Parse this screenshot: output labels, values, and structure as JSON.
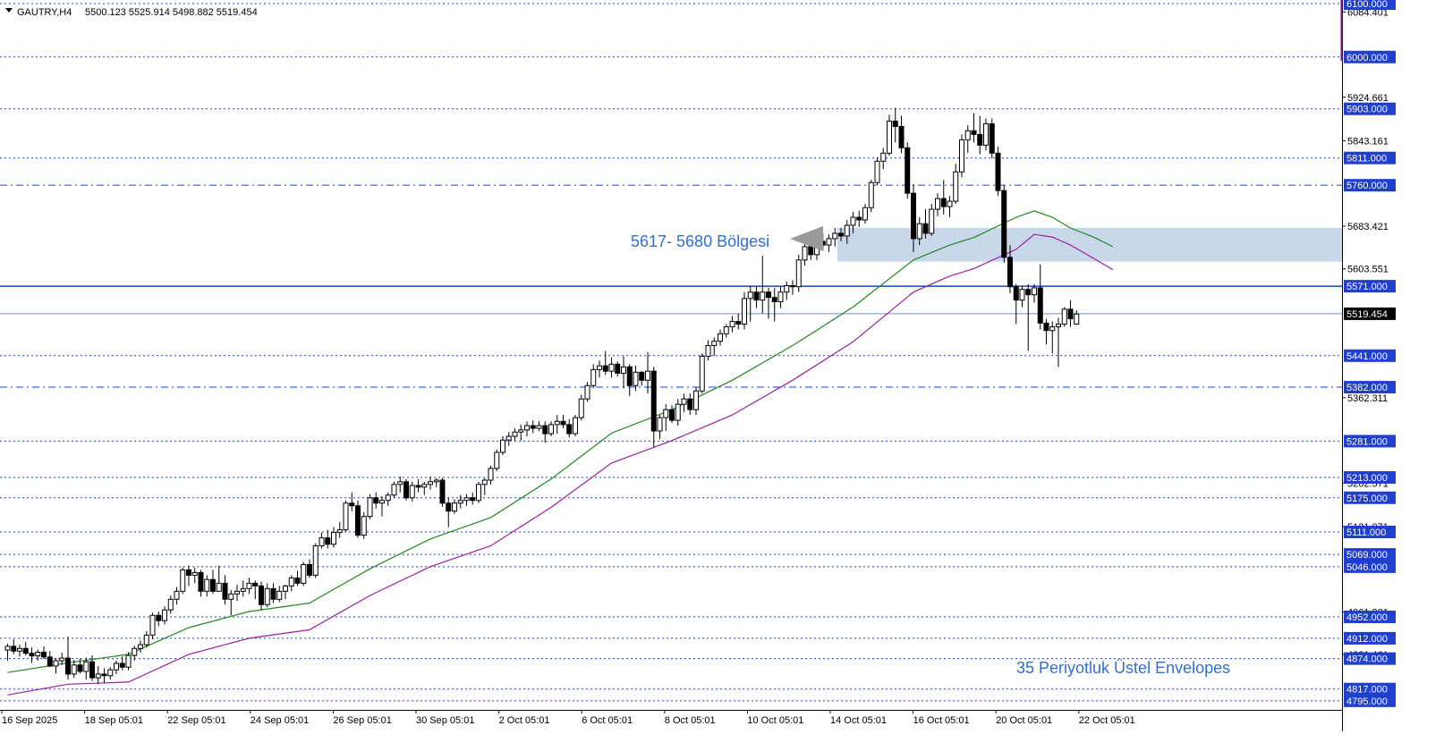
{
  "header": {
    "symbol_tf": "GAUTRY,H4",
    "ohlc": "5500.123 5525.914 5498.882 5519.454"
  },
  "colors": {
    "bull_body": "#ffffff",
    "bear_body": "#000000",
    "candle_line": "#000000",
    "grid_dotted": "#1f3fcc",
    "level_dash_dot": "#1f3fcc",
    "support_solid": "#1a46c8",
    "price_line": "#6f8fc4",
    "zone_fill": "#c9d7ea",
    "ema_upper": "#1f8a1f",
    "ema_lower": "#9b1fa0",
    "tag_bg": "#1f3fcc",
    "annotation_text": "#2f6fd6",
    "axis_accent": "#7a1a8a"
  },
  "chart_data": {
    "type": "candlestick",
    "timeframe": "H4",
    "y_axis_range": [
      4778,
      6100
    ],
    "y_axis_side": "right",
    "x_labels": [
      "16 Sep 2025",
      "18 Sep 05:01",
      "22 Sep 05:01",
      "24 Sep 05:01",
      "26 Sep 05:01",
      "30 Sep 05:01",
      "2 Oct 05:01",
      "6 Oct 05:01",
      "8 Oct 05:01",
      "10 Oct 05:01",
      "14 Oct 05:01",
      "16 Oct 05:01",
      "20 Oct 05:01",
      "22 Oct 05:01"
    ],
    "y_ticks": [
      "6084.401",
      "5924.661",
      "5843.161",
      "5683.421",
      "5603.551",
      "5362.311",
      "5202.571",
      "5121.071",
      "4961.331",
      "4881.461"
    ],
    "levels_dotted": [
      {
        "value": 6100,
        "label": "6100.000"
      },
      {
        "value": 6000,
        "label": "6000.000"
      },
      {
        "value": 5903,
        "label": "5903.000"
      },
      {
        "value": 5811,
        "label": "5811.000"
      },
      {
        "value": 5441,
        "label": "5441.000"
      },
      {
        "value": 5281,
        "label": "5281.000"
      },
      {
        "value": 5213,
        "label": "5213.000"
      },
      {
        "value": 5175,
        "label": "5175.000"
      },
      {
        "value": 5111,
        "label": "5111.000"
      },
      {
        "value": 5069,
        "label": "5069.000"
      },
      {
        "value": 5046,
        "label": "5046.000"
      },
      {
        "value": 4952,
        "label": "4952.000"
      },
      {
        "value": 4912,
        "label": "4912.000"
      },
      {
        "value": 4874,
        "label": "4874.000"
      },
      {
        "value": 4817,
        "label": "4817.000"
      },
      {
        "value": 4795,
        "label": "4795.000"
      }
    ],
    "levels_dash_dot": [
      {
        "value": 5760,
        "label": "5760.000"
      },
      {
        "value": 5382,
        "label": "5382.000"
      }
    ],
    "levels_solid": [
      {
        "value": 5571,
        "label": "5571.000"
      }
    ],
    "current_price": {
      "value": 5519.454,
      "label": "5519.454"
    },
    "zone": {
      "low": 5617,
      "high": 5680,
      "label": "5617- 5680 Bölgesi"
    },
    "envelope_label": "35 Periyotluk Üstel Envelopes",
    "candles": [
      [
        4890,
        4902,
        4870,
        4897
      ],
      [
        4897,
        4910,
        4882,
        4888
      ],
      [
        4888,
        4900,
        4878,
        4893
      ],
      [
        4893,
        4905,
        4880,
        4884
      ],
      [
        4884,
        4895,
        4866,
        4879
      ],
      [
        4879,
        4891,
        4870,
        4886
      ],
      [
        4886,
        4897,
        4873,
        4877
      ],
      [
        4877,
        4888,
        4858,
        4860
      ],
      [
        4860,
        4875,
        4846,
        4870
      ],
      [
        4870,
        4885,
        4862,
        4875
      ],
      [
        4875,
        4915,
        4835,
        4845
      ],
      [
        4845,
        4872,
        4838,
        4862
      ],
      [
        4862,
        4874,
        4846,
        4850
      ],
      [
        4850,
        4876,
        4835,
        4868
      ],
      [
        4868,
        4880,
        4832,
        4838
      ],
      [
        4838,
        4860,
        4826,
        4845
      ],
      [
        4845,
        4856,
        4828,
        4842
      ],
      [
        4842,
        4858,
        4835,
        4853
      ],
      [
        4853,
        4870,
        4845,
        4865
      ],
      [
        4865,
        4878,
        4852,
        4858
      ],
      [
        4858,
        4886,
        4852,
        4880
      ],
      [
        4880,
        4898,
        4870,
        4893
      ],
      [
        4893,
        4908,
        4885,
        4900
      ],
      [
        4900,
        4925,
        4895,
        4918
      ],
      [
        4918,
        4960,
        4910,
        4955
      ],
      [
        4955,
        4962,
        4935,
        4945
      ],
      [
        4945,
        4972,
        4938,
        4965
      ],
      [
        4965,
        4992,
        4958,
        4985
      ],
      [
        4985,
        5008,
        4975,
        5000
      ],
      [
        5000,
        5045,
        4995,
        5040
      ],
      [
        5040,
        5048,
        5010,
        5030
      ],
      [
        5030,
        5045,
        5015,
        5035
      ],
      [
        5035,
        5040,
        4990,
        5000
      ],
      [
        5000,
        5030,
        4990,
        5022
      ],
      [
        5022,
        5040,
        4995,
        5000
      ],
      [
        5000,
        5048,
        5010,
        5015
      ],
      [
        5015,
        5030,
        4975,
        4985
      ],
      [
        4985,
        5002,
        4955,
        4995
      ],
      [
        4995,
        5012,
        4982,
        5000
      ],
      [
        5000,
        5020,
        4990,
        5005
      ],
      [
        5005,
        5025,
        4995,
        5015
      ],
      [
        5015,
        5020,
        4985,
        5010
      ],
      [
        5010,
        5018,
        4965,
        4975
      ],
      [
        4975,
        5015,
        4970,
        5005
      ],
      [
        5005,
        5015,
        4978,
        4985
      ],
      [
        4985,
        5010,
        4980,
        5000
      ],
      [
        5000,
        5012,
        4985,
        5010
      ],
      [
        5010,
        5030,
        5000,
        5025
      ],
      [
        5025,
        5038,
        5010,
        5015
      ],
      [
        5015,
        5055,
        5010,
        5050
      ],
      [
        5050,
        5060,
        5025,
        5030
      ],
      [
        5030,
        5090,
        5025,
        5085
      ],
      [
        5085,
        5110,
        5080,
        5100
      ],
      [
        5100,
        5115,
        5080,
        5088
      ],
      [
        5088,
        5120,
        5082,
        5110
      ],
      [
        5110,
        5130,
        5100,
        5115
      ],
      [
        5115,
        5170,
        5112,
        5165
      ],
      [
        5165,
        5185,
        5150,
        5160
      ],
      [
        5160,
        5170,
        5100,
        5105
      ],
      [
        5105,
        5148,
        5098,
        5140
      ],
      [
        5140,
        5182,
        5135,
        5175
      ],
      [
        5175,
        5185,
        5155,
        5165
      ],
      [
        5165,
        5178,
        5140,
        5170
      ],
      [
        5170,
        5185,
        5160,
        5180
      ],
      [
        5180,
        5205,
        5175,
        5200
      ],
      [
        5200,
        5215,
        5185,
        5205
      ],
      [
        5205,
        5210,
        5170,
        5175
      ],
      [
        5175,
        5205,
        5168,
        5198
      ],
      [
        5198,
        5210,
        5185,
        5195
      ],
      [
        5195,
        5205,
        5180,
        5200
      ],
      [
        5200,
        5215,
        5190,
        5205
      ],
      [
        5205,
        5212,
        5195,
        5208
      ],
      [
        5208,
        5212,
        5158,
        5165
      ],
      [
        5165,
        5175,
        5120,
        5150
      ],
      [
        5150,
        5172,
        5145,
        5165
      ],
      [
        5165,
        5180,
        5155,
        5170
      ],
      [
        5170,
        5182,
        5160,
        5175
      ],
      [
        5175,
        5185,
        5162,
        5170
      ],
      [
        5170,
        5205,
        5165,
        5200
      ],
      [
        5200,
        5212,
        5180,
        5208
      ],
      [
        5208,
        5235,
        5200,
        5230
      ],
      [
        5230,
        5265,
        5225,
        5260
      ],
      [
        5260,
        5290,
        5255,
        5283
      ],
      [
        5283,
        5298,
        5272,
        5290
      ],
      [
        5290,
        5305,
        5282,
        5298
      ],
      [
        5298,
        5312,
        5282,
        5302
      ],
      [
        5302,
        5318,
        5290,
        5310
      ],
      [
        5310,
        5320,
        5296,
        5305
      ],
      [
        5305,
        5318,
        5300,
        5310
      ],
      [
        5310,
        5318,
        5278,
        5295
      ],
      [
        5295,
        5318,
        5290,
        5312
      ],
      [
        5312,
        5330,
        5295,
        5318
      ],
      [
        5318,
        5330,
        5305,
        5312
      ],
      [
        5312,
        5322,
        5288,
        5295
      ],
      [
        5295,
        5330,
        5290,
        5325
      ],
      [
        5325,
        5368,
        5320,
        5360
      ],
      [
        5360,
        5392,
        5355,
        5385
      ],
      [
        5385,
        5425,
        5380,
        5415
      ],
      [
        5415,
        5432,
        5400,
        5422
      ],
      [
        5422,
        5450,
        5405,
        5412
      ],
      [
        5412,
        5438,
        5400,
        5425
      ],
      [
        5425,
        5430,
        5402,
        5408
      ],
      [
        5408,
        5440,
        5380,
        5420
      ],
      [
        5420,
        5425,
        5365,
        5385
      ],
      [
        5385,
        5422,
        5375,
        5410
      ],
      [
        5410,
        5412,
        5385,
        5395
      ],
      [
        5395,
        5448,
        5370,
        5412
      ],
      [
        5412,
        5420,
        5270,
        5300
      ],
      [
        5300,
        5330,
        5285,
        5325
      ],
      [
        5325,
        5350,
        5300,
        5340
      ],
      [
        5340,
        5348,
        5315,
        5320
      ],
      [
        5320,
        5360,
        5310,
        5350
      ],
      [
        5350,
        5370,
        5335,
        5360
      ],
      [
        5360,
        5370,
        5330,
        5340
      ],
      [
        5340,
        5382,
        5330,
        5375
      ],
      [
        5375,
        5445,
        5370,
        5440
      ],
      [
        5440,
        5470,
        5432,
        5460
      ],
      [
        5460,
        5475,
        5440,
        5468
      ],
      [
        5468,
        5490,
        5460,
        5482
      ],
      [
        5482,
        5500,
        5475,
        5495
      ],
      [
        5495,
        5515,
        5485,
        5505
      ],
      [
        5505,
        5520,
        5490,
        5500
      ],
      [
        5500,
        5560,
        5490,
        5548
      ],
      [
        5548,
        5572,
        5505,
        5560
      ],
      [
        5560,
        5570,
        5530,
        5545
      ],
      [
        5545,
        5628,
        5520,
        5560
      ],
      [
        5560,
        5568,
        5510,
        5550
      ],
      [
        5550,
        5568,
        5505,
        5542
      ],
      [
        5542,
        5570,
        5530,
        5560
      ],
      [
        5560,
        5580,
        5545,
        5572
      ],
      [
        5572,
        5582,
        5555,
        5570
      ],
      [
        5570,
        5630,
        5560,
        5620
      ],
      [
        5620,
        5660,
        5610,
        5645
      ],
      [
        5645,
        5655,
        5620,
        5630
      ],
      [
        5630,
        5665,
        5620,
        5655
      ],
      [
        5655,
        5670,
        5638,
        5648
      ],
      [
        5648,
        5668,
        5635,
        5660
      ],
      [
        5660,
        5680,
        5645,
        5670
      ],
      [
        5670,
        5680,
        5655,
        5665
      ],
      [
        5665,
        5695,
        5650,
        5685
      ],
      [
        5685,
        5710,
        5670,
        5700
      ],
      [
        5700,
        5712,
        5682,
        5695
      ],
      [
        5695,
        5725,
        5688,
        5718
      ],
      [
        5718,
        5770,
        5710,
        5765
      ],
      [
        5765,
        5812,
        5760,
        5805
      ],
      [
        5805,
        5830,
        5790,
        5820
      ],
      [
        5820,
        5892,
        5815,
        5880
      ],
      [
        5880,
        5905,
        5840,
        5870
      ],
      [
        5870,
        5890,
        5820,
        5830
      ],
      [
        5830,
        5840,
        5735,
        5745
      ],
      [
        5745,
        5762,
        5635,
        5660
      ],
      [
        5660,
        5700,
        5648,
        5688
      ],
      [
        5688,
        5715,
        5660,
        5670
      ],
      [
        5670,
        5725,
        5665,
        5715
      ],
      [
        5715,
        5745,
        5702,
        5735
      ],
      [
        5735,
        5770,
        5705,
        5720
      ],
      [
        5720,
        5740,
        5700,
        5730
      ],
      [
        5730,
        5800,
        5725,
        5785
      ],
      [
        5785,
        5855,
        5775,
        5845
      ],
      [
        5845,
        5872,
        5820,
        5862
      ],
      [
        5862,
        5895,
        5840,
        5855
      ],
      [
        5855,
        5890,
        5818,
        5835
      ],
      [
        5835,
        5885,
        5825,
        5875
      ],
      [
        5875,
        5885,
        5810,
        5820
      ],
      [
        5820,
        5832,
        5740,
        5750
      ],
      [
        5750,
        5760,
        5615,
        5625
      ],
      [
        5625,
        5648,
        5558,
        5570
      ],
      [
        5570,
        5575,
        5500,
        5545
      ],
      [
        5545,
        5572,
        5532,
        5565
      ],
      [
        5565,
        5575,
        5450,
        5555
      ],
      [
        5555,
        5575,
        5540,
        5568
      ],
      [
        5568,
        5612,
        5490,
        5502
      ],
      [
        5502,
        5510,
        5462,
        5488
      ],
      [
        5488,
        5505,
        5445,
        5495
      ],
      [
        5495,
        5512,
        5420,
        5500
      ],
      [
        5500,
        5532,
        5495,
        5528
      ],
      [
        5528,
        5545,
        5495,
        5510
      ],
      [
        5500,
        5526,
        5499,
        5519
      ]
    ],
    "ema_upper": [
      {
        "i": 0,
        "v": 4848
      },
      {
        "i": 10,
        "v": 4866
      },
      {
        "i": 20,
        "v": 4882
      },
      {
        "i": 30,
        "v": 4932
      },
      {
        "i": 40,
        "v": 4962
      },
      {
        "i": 50,
        "v": 4978
      },
      {
        "i": 60,
        "v": 5042
      },
      {
        "i": 70,
        "v": 5098
      },
      {
        "i": 80,
        "v": 5138
      },
      {
        "i": 90,
        "v": 5210
      },
      {
        "i": 100,
        "v": 5296
      },
      {
        "i": 110,
        "v": 5340
      },
      {
        "i": 120,
        "v": 5395
      },
      {
        "i": 130,
        "v": 5460
      },
      {
        "i": 140,
        "v": 5532
      },
      {
        "i": 150,
        "v": 5620
      },
      {
        "i": 156,
        "v": 5648
      },
      {
        "i": 160,
        "v": 5662
      },
      {
        "i": 167,
        "v": 5700
      },
      {
        "i": 170,
        "v": 5712
      },
      {
        "i": 173,
        "v": 5700
      },
      {
        "i": 176,
        "v": 5680
      },
      {
        "i": 180,
        "v": 5662
      },
      {
        "i": 183,
        "v": 5645
      }
    ],
    "ema_lower": [
      {
        "i": 0,
        "v": 4806
      },
      {
        "i": 10,
        "v": 4826
      },
      {
        "i": 20,
        "v": 4830
      },
      {
        "i": 30,
        "v": 4882
      },
      {
        "i": 40,
        "v": 4912
      },
      {
        "i": 50,
        "v": 4928
      },
      {
        "i": 60,
        "v": 4992
      },
      {
        "i": 70,
        "v": 5046
      },
      {
        "i": 80,
        "v": 5085
      },
      {
        "i": 90,
        "v": 5157
      },
      {
        "i": 100,
        "v": 5240
      },
      {
        "i": 110,
        "v": 5282
      },
      {
        "i": 120,
        "v": 5330
      },
      {
        "i": 130,
        "v": 5395
      },
      {
        "i": 140,
        "v": 5467
      },
      {
        "i": 150,
        "v": 5560
      },
      {
        "i": 156,
        "v": 5590
      },
      {
        "i": 160,
        "v": 5604
      },
      {
        "i": 167,
        "v": 5640
      },
      {
        "i": 170,
        "v": 5668
      },
      {
        "i": 173,
        "v": 5663
      },
      {
        "i": 176,
        "v": 5648
      },
      {
        "i": 180,
        "v": 5622
      },
      {
        "i": 183,
        "v": 5602
      }
    ]
  }
}
